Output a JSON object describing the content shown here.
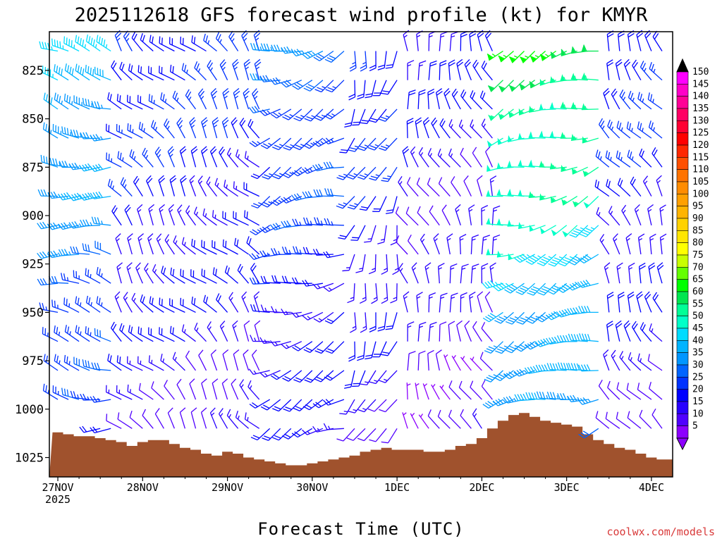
{
  "title": "2025112618 GFS forecast wind profile (kt) for KMYR",
  "xlabel": "Forecast Time (UTC)",
  "credit": "coolwx.com/models",
  "colors": {
    "terrain": "#a0522d",
    "frame": "#000000",
    "credit": "#d93a3a"
  },
  "chart_data": {
    "type": "wind_barb_profile",
    "title": "2025112618 GFS forecast wind profile (kt) for KMYR",
    "xlabel": "Forecast Time (UTC)",
    "ylabel": "",
    "y_axis": {
      "ticks": [
        "825",
        "850",
        "875",
        "900",
        "925",
        "950",
        "975",
        "1000",
        "1025"
      ],
      "tick_values": [
        825,
        850,
        875,
        900,
        925,
        950,
        975,
        1000,
        1025
      ],
      "range": [
        805,
        1035
      ],
      "direction": "pressure increasing downward (hPa)"
    },
    "x_axis": {
      "ticks": [
        "27NOV",
        "28NOV",
        "29NOV",
        "30NOV",
        "1DEC",
        "2DEC",
        "3DEC",
        "4DEC"
      ],
      "first_tick_year": "2025",
      "range_days": [
        -0.1,
        7.25
      ]
    },
    "colorbar": {
      "labels": [
        "150",
        "145",
        "140",
        "135",
        "130",
        "125",
        "120",
        "115",
        "110",
        "105",
        "100",
        "95",
        "90",
        "85",
        "80",
        "75",
        "70",
        "65",
        "60",
        "55",
        "50",
        "45",
        "40",
        "35",
        "30",
        "25",
        "20",
        "15",
        "10",
        "5"
      ],
      "colors": [
        "#ff00ff",
        "#ff00c8",
        "#ff0096",
        "#ff0064",
        "#ff0032",
        "#ff0000",
        "#ff2800",
        "#ff5000",
        "#ff7300",
        "#ff8c00",
        "#ffa000",
        "#ffb400",
        "#ffd200",
        "#ffe600",
        "#ffff00",
        "#c8ff00",
        "#64ff00",
        "#00ff00",
        "#00e650",
        "#00ff96",
        "#00ffc8",
        "#00dcff",
        "#00b4ff",
        "#0096ff",
        "#0064ff",
        "#0032ff",
        "#0000ff",
        "#2800ff",
        "#5000ff",
        "#8c00ff"
      ],
      "units": "kt"
    },
    "terrain_surface_pressure": [
      [
        0,
        1012
      ],
      [
        0.125,
        1013
      ],
      [
        0.25,
        1014
      ],
      [
        0.375,
        1014
      ],
      [
        0.5,
        1015
      ],
      [
        0.625,
        1016
      ],
      [
        0.75,
        1017
      ],
      [
        0.875,
        1019
      ],
      [
        1.0,
        1017
      ],
      [
        1.125,
        1016
      ],
      [
        1.25,
        1016
      ],
      [
        1.375,
        1018
      ],
      [
        1.5,
        1020
      ],
      [
        1.625,
        1021
      ],
      [
        1.75,
        1023
      ],
      [
        1.875,
        1024
      ],
      [
        2.0,
        1022
      ],
      [
        2.125,
        1023
      ],
      [
        2.25,
        1025
      ],
      [
        2.375,
        1026
      ],
      [
        2.5,
        1027
      ],
      [
        2.625,
        1028
      ],
      [
        2.75,
        1029
      ],
      [
        2.875,
        1029
      ],
      [
        3.0,
        1028
      ],
      [
        3.125,
        1027
      ],
      [
        3.25,
        1026
      ],
      [
        3.375,
        1025
      ],
      [
        3.5,
        1024
      ],
      [
        3.625,
        1022
      ],
      [
        3.75,
        1021
      ],
      [
        3.875,
        1020
      ],
      [
        4.0,
        1021
      ],
      [
        4.125,
        1021
      ],
      [
        4.25,
        1021
      ],
      [
        4.375,
        1022
      ],
      [
        4.5,
        1022
      ],
      [
        4.625,
        1021
      ],
      [
        4.75,
        1019
      ],
      [
        4.875,
        1018
      ],
      [
        5.0,
        1015
      ],
      [
        5.125,
        1010
      ],
      [
        5.25,
        1006
      ],
      [
        5.375,
        1003
      ],
      [
        5.5,
        1002
      ],
      [
        5.625,
        1004
      ],
      [
        5.75,
        1006
      ],
      [
        5.875,
        1007
      ],
      [
        6.0,
        1008
      ],
      [
        6.125,
        1009
      ],
      [
        6.25,
        1013
      ],
      [
        6.375,
        1016
      ],
      [
        6.5,
        1018
      ],
      [
        6.625,
        1020
      ],
      [
        6.75,
        1021
      ],
      [
        6.875,
        1023
      ],
      [
        7.0,
        1025
      ],
      [
        7.125,
        1026
      ],
      [
        7.25,
        1026
      ]
    ],
    "wind_barb_levels": [
      815,
      830,
      845,
      860,
      875,
      890,
      905,
      920,
      935,
      950,
      965,
      980,
      995,
      1010,
      1025
    ],
    "wind_barb_time_step_days": 0.125,
    "wind_barb_regimes": [
      {
        "from_day": -0.1,
        "to_day": 0.7,
        "direction_deg": 280,
        "speed_kt": 35,
        "note": "westerly strong aloft, weaker near surface"
      },
      {
        "from_day": 0.7,
        "to_day": 2.5,
        "direction_deg": 320,
        "speed_kt": 20,
        "note": "northwesterly light-moderate"
      },
      {
        "from_day": 2.5,
        "to_day": 3.4,
        "direction_deg": 250,
        "speed_kt": 25,
        "note": "southwesterly aloft"
      },
      {
        "from_day": 3.4,
        "to_day": 4.1,
        "direction_deg": 200,
        "speed_kt": 20,
        "note": "southerly / variable"
      },
      {
        "from_day": 4.1,
        "to_day": 5.2,
        "direction_deg": 340,
        "speed_kt": 15,
        "note": "northerly light"
      },
      {
        "from_day": 5.2,
        "to_day": 6.4,
        "direction_deg": 250,
        "speed_kt": 50,
        "note": "strong southwesterly jet aloft"
      },
      {
        "from_day": 6.4,
        "to_day": 7.25,
        "direction_deg": 330,
        "speed_kt": 20,
        "note": "northwesterly"
      }
    ]
  }
}
